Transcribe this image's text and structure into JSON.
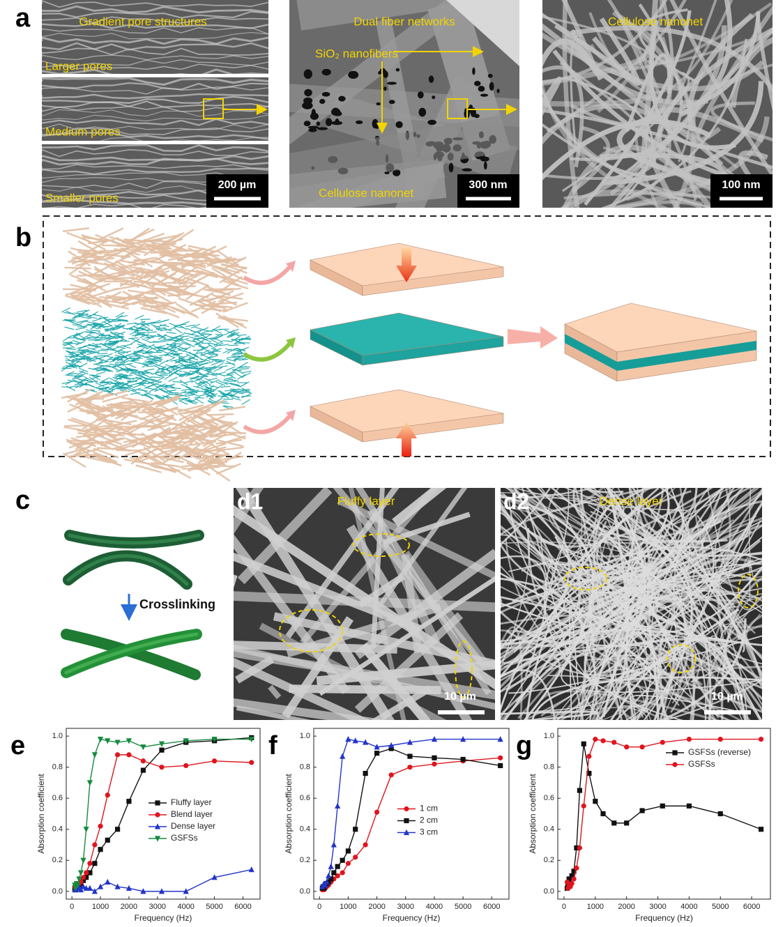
{
  "panel_labels": {
    "a": "a",
    "b": "b",
    "c": "c",
    "d1": "d1",
    "d2": "d2",
    "e": "e",
    "f": "f",
    "g": "g"
  },
  "a": {
    "left": {
      "title": "Gradient pore structures",
      "layers": [
        "Larger pores",
        "Medium pores",
        "Smaller pores"
      ],
      "scale": "200 µm"
    },
    "middle": {
      "title": "Dual fiber networks",
      "arrow_label": "SiO₂ nanofibers",
      "bottom_label": "Cellulose nanonet",
      "scale": "300 nm"
    },
    "right": {
      "title": "Cellulose nanonet",
      "scale": "100 nm"
    }
  },
  "c": {
    "label": "Crosslinking"
  },
  "d1": {
    "title": "Fluffy layer",
    "scale": "10 µm"
  },
  "d2": {
    "title": "Dense layer",
    "scale": "10 µm"
  },
  "chart_data": [
    {
      "type": "line",
      "xlabel": "Frequency (Hz)",
      "ylabel": "Absorption coefficient",
      "legend": "center right",
      "x": [
        100,
        125,
        160,
        200,
        250,
        315,
        400,
        500,
        630,
        800,
        1000,
        1250,
        1600,
        2000,
        2500,
        3150,
        4000,
        5000,
        6300
      ],
      "xlim": [
        -200,
        6600
      ],
      "ylim": [
        -0.05,
        1.05
      ],
      "xticks": [
        0,
        1000,
        2000,
        3000,
        4000,
        5000,
        6000
      ],
      "yticks": [
        {
          "value": 0,
          "label": "0.0"
        },
        {
          "value": 0.2,
          "label": "0.2"
        },
        {
          "value": 0.4,
          "label": "0.4"
        },
        {
          "value": 0.6,
          "label": "0.6"
        },
        {
          "value": 0.8,
          "label": "0.8"
        },
        {
          "value": 1,
          "label": "1.0"
        }
      ],
      "series": [
        {
          "name": "Fluffy layer",
          "color": "#111111",
          "marker": "square",
          "values": [
            0.02,
            0.01,
            0.02,
            0.03,
            0.04,
            0.05,
            0.07,
            0.09,
            0.12,
            0.18,
            0.27,
            0.33,
            0.4,
            0.58,
            0.78,
            0.91,
            0.96,
            0.97,
            0.99
          ]
        },
        {
          "name": "Blend layer",
          "color": "#e0141e",
          "marker": "circle",
          "values": [
            0.03,
            0.02,
            0.03,
            0.04,
            0.05,
            0.06,
            0.09,
            0.12,
            0.18,
            0.3,
            0.42,
            0.62,
            0.88,
            0.88,
            0.84,
            0.8,
            0.81,
            0.84,
            0.83
          ]
        },
        {
          "name": "Dense layer",
          "color": "#2234c8",
          "marker": "triangle",
          "values": [
            0.01,
            0.02,
            0.03,
            0.02,
            0.03,
            0.01,
            0.03,
            0.02,
            0.02,
            0.0,
            0.03,
            0.06,
            0.03,
            0.02,
            0.0,
            0.0,
            0.0,
            0.09,
            0.14
          ]
        },
        {
          "name": "GSFSs",
          "color": "#168a3e",
          "marker": "triangle-down",
          "values": [
            0.04,
            0.02,
            0.05,
            0.04,
            0.08,
            0.12,
            0.2,
            0.4,
            0.7,
            0.88,
            0.98,
            0.97,
            0.96,
            0.97,
            0.93,
            0.95,
            0.97,
            0.98,
            0.98
          ]
        }
      ]
    },
    {
      "type": "line",
      "xlabel": "Frequency (Hz)",
      "ylabel": "Absorption coefficient",
      "legend": "center right",
      "x": [
        100,
        125,
        160,
        200,
        250,
        315,
        400,
        500,
        630,
        800,
        1000,
        1250,
        1600,
        2000,
        2500,
        3150,
        4000,
        5000,
        6300
      ],
      "xlim": [
        -200,
        6600
      ],
      "ylim": [
        -0.05,
        1.05
      ],
      "xticks": [
        0,
        1000,
        2000,
        3000,
        4000,
        5000,
        6000
      ],
      "yticks": [
        {
          "value": 0,
          "label": "0.0"
        },
        {
          "value": 0.2,
          "label": "0.2"
        },
        {
          "value": 0.4,
          "label": "0.4"
        },
        {
          "value": 0.6,
          "label": "0.6"
        },
        {
          "value": 0.8,
          "label": "0.8"
        },
        {
          "value": 1,
          "label": "1.0"
        }
      ],
      "series": [
        {
          "name": "1 cm",
          "color": "#e0141e",
          "marker": "circle",
          "values": [
            0.01,
            0.02,
            0.01,
            0.02,
            0.03,
            0.04,
            0.06,
            0.08,
            0.1,
            0.12,
            0.18,
            0.22,
            0.3,
            0.51,
            0.75,
            0.8,
            0.82,
            0.84,
            0.86
          ]
        },
        {
          "name": "2 cm",
          "color": "#111111",
          "marker": "square",
          "values": [
            0.02,
            0.03,
            0.02,
            0.04,
            0.05,
            0.06,
            0.08,
            0.12,
            0.16,
            0.2,
            0.26,
            0.4,
            0.76,
            0.89,
            0.92,
            0.87,
            0.86,
            0.85,
            0.81
          ]
        },
        {
          "name": "3 cm",
          "color": "#2234c8",
          "marker": "triangle",
          "values": [
            0.03,
            0.04,
            0.05,
            0.04,
            0.06,
            0.1,
            0.16,
            0.3,
            0.55,
            0.87,
            0.98,
            0.97,
            0.96,
            0.93,
            0.94,
            0.96,
            0.98,
            0.98,
            0.98
          ]
        }
      ]
    },
    {
      "type": "line",
      "xlabel": "Frequency (Hz)",
      "ylabel": "Absorption coefficient",
      "legend": "upper right",
      "x": [
        100,
        125,
        160,
        200,
        250,
        315,
        400,
        500,
        630,
        800,
        1000,
        1250,
        1600,
        2000,
        2500,
        3150,
        4000,
        5000,
        6300
      ],
      "xlim": [
        -200,
        6600
      ],
      "ylim": [
        -0.05,
        1.05
      ],
      "xticks": [
        0,
        1000,
        2000,
        3000,
        4000,
        5000,
        6000
      ],
      "yticks": [
        {
          "value": 0,
          "label": "0.0"
        },
        {
          "value": 0.2,
          "label": "0.2"
        },
        {
          "value": 0.4,
          "label": "0.4"
        },
        {
          "value": 0.6,
          "label": "0.6"
        },
        {
          "value": 0.8,
          "label": "0.8"
        },
        {
          "value": 1,
          "label": "1.0"
        }
      ],
      "series": [
        {
          "name": "GSFSs (reverse)",
          "color": "#111111",
          "marker": "square",
          "values": [
            0.02,
            0.05,
            0.08,
            0.05,
            0.1,
            0.13,
            0.28,
            0.65,
            0.95,
            0.76,
            0.58,
            0.5,
            0.44,
            0.44,
            0.52,
            0.55,
            0.55,
            0.5,
            0.4
          ]
        },
        {
          "name": "GSFSs",
          "color": "#e0141e",
          "marker": "circle",
          "values": [
            0.06,
            0.02,
            0.04,
            0.03,
            0.05,
            0.08,
            0.15,
            0.28,
            0.55,
            0.87,
            0.98,
            0.97,
            0.96,
            0.93,
            0.93,
            0.96,
            0.98,
            0.98,
            0.98
          ]
        }
      ]
    }
  ]
}
